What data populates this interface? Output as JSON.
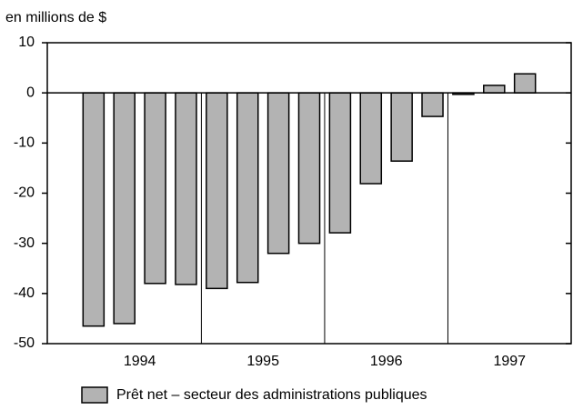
{
  "chart_data": {
    "type": "bar",
    "y_axis_label": "en millions de $",
    "categories": [
      null,
      null,
      null,
      null,
      null,
      null,
      null,
      null,
      null,
      null,
      null,
      null,
      null,
      null,
      null,
      null,
      null
    ],
    "values": [
      null,
      -46.5,
      -46,
      -38,
      -38.2,
      -39,
      -37.8,
      -32,
      -30,
      -27.9,
      -18.1,
      -13.6,
      -4.7,
      -0.3,
      1.5,
      3.8,
      null
    ],
    "groups": [
      "1994",
      "1995",
      "1996",
      "1997"
    ],
    "series_name": "Prêt net – secteur des administrations publiques",
    "color": "#b3b3b3",
    "ylim": [
      -50,
      10
    ],
    "yticks": [
      -50,
      -40,
      -30,
      -20,
      -10,
      0,
      10
    ]
  }
}
